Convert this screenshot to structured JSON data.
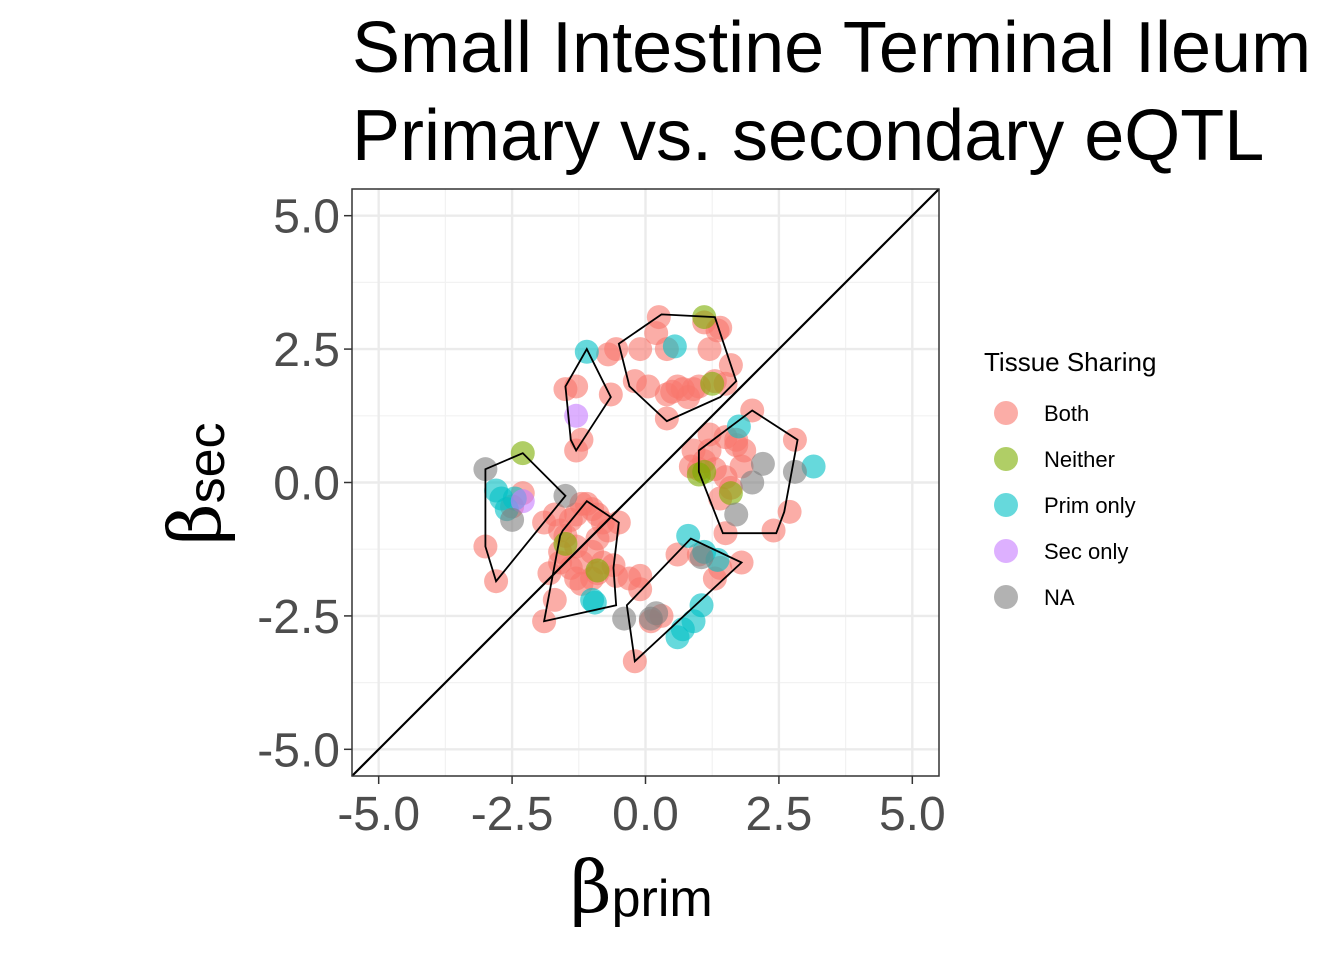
{
  "chart_data": {
    "type": "scatter",
    "title_lines": [
      "Small Intestine Terminal Ileum",
      "Primary vs. secondary eQTL"
    ],
    "xlabel": {
      "symbol": "β",
      "subscript": "prim"
    },
    "ylabel": {
      "symbol": "β",
      "subscript": "sec"
    },
    "xlim": [
      -5.5,
      5.5
    ],
    "ylim": [
      -5.5,
      5.5
    ],
    "xticks": [
      -5.0,
      -2.5,
      0.0,
      2.5,
      5.0
    ],
    "yticks": [
      -5.0,
      -2.5,
      0.0,
      2.5,
      5.0
    ],
    "tick_labels": [
      "-5.0",
      "-2.5",
      "0.0",
      "2.5",
      "5.0"
    ],
    "grid": true,
    "reference_line": "y = x",
    "legend": {
      "title": "Tissue Sharing",
      "placement": "right",
      "entries": [
        {
          "label": "Both",
          "key": "both",
          "color": "#F8766D"
        },
        {
          "label": "Neither",
          "key": "neither",
          "color": "#7CAE00"
        },
        {
          "label": "Prim only",
          "key": "prim",
          "color": "#00BFC4"
        },
        {
          "label": "Sec only",
          "key": "sec",
          "color": "#C77CFF"
        },
        {
          "label": "NA",
          "key": "na",
          "color": "#7F7F7F"
        }
      ]
    },
    "series": [
      {
        "name": "Both",
        "key": "both",
        "points": [
          [
            0.2,
            2.8
          ],
          [
            0.25,
            3.1
          ],
          [
            0.4,
            2.5
          ],
          [
            -0.1,
            2.5
          ],
          [
            -0.55,
            2.5
          ],
          [
            -0.7,
            2.4
          ],
          [
            -0.2,
            1.9
          ],
          [
            0.05,
            1.8
          ],
          [
            0.4,
            1.65
          ],
          [
            0.5,
            1.7
          ],
          [
            0.6,
            1.8
          ],
          [
            0.7,
            1.75
          ],
          [
            0.8,
            1.6
          ],
          [
            0.9,
            1.75
          ],
          [
            1.0,
            1.8
          ],
          [
            1.3,
            1.9
          ],
          [
            1.5,
            1.85
          ],
          [
            1.6,
            2.2
          ],
          [
            1.2,
            2.5
          ],
          [
            1.1,
            3.0
          ],
          [
            1.4,
            2.9
          ],
          [
            1.35,
            2.85
          ],
          [
            0.4,
            1.2
          ],
          [
            -1.5,
            1.75
          ],
          [
            -1.3,
            1.8
          ],
          [
            -0.65,
            1.65
          ],
          [
            -1.3,
            0.6
          ],
          [
            -1.2,
            0.8
          ],
          [
            1.2,
            0.9
          ],
          [
            1.5,
            0.85
          ],
          [
            1.7,
            0.7
          ],
          [
            1.85,
            0.6
          ],
          [
            2.0,
            1.35
          ],
          [
            2.8,
            0.8
          ],
          [
            1.3,
            0.25
          ],
          [
            1.5,
            0.1
          ],
          [
            1.8,
            0.3
          ],
          [
            1.6,
            -0.1
          ],
          [
            1.4,
            -0.3
          ],
          [
            2.4,
            -0.9
          ],
          [
            2.7,
            -0.55
          ],
          [
            1.5,
            -0.95
          ],
          [
            0.9,
            0.6
          ],
          [
            1.1,
            0.4
          ],
          [
            1.0,
            0.25
          ],
          [
            0.85,
            0.3
          ],
          [
            1.2,
            0.6
          ],
          [
            1.7,
            0.8
          ],
          [
            -3.0,
            -1.2
          ],
          [
            -2.8,
            -1.85
          ],
          [
            -2.5,
            -0.45
          ],
          [
            -2.3,
            -0.2
          ],
          [
            -1.9,
            -0.75
          ],
          [
            -1.7,
            -0.6
          ],
          [
            -1.6,
            -0.9
          ],
          [
            -1.5,
            -1.0
          ],
          [
            -1.4,
            -0.7
          ],
          [
            -1.3,
            -0.6
          ],
          [
            -1.2,
            -0.4
          ],
          [
            -1.1,
            -0.4
          ],
          [
            -1.0,
            -0.5
          ],
          [
            -0.9,
            -0.6
          ],
          [
            -0.8,
            -0.75
          ],
          [
            -0.7,
            -0.9
          ],
          [
            -0.5,
            -0.75
          ],
          [
            -1.3,
            -1.2
          ],
          [
            -1.2,
            -1.5
          ],
          [
            -1.0,
            -1.3
          ],
          [
            -0.9,
            -1.05
          ],
          [
            -1.6,
            -1.3
          ],
          [
            -1.4,
            -1.6
          ],
          [
            -1.3,
            -1.8
          ],
          [
            -1.2,
            -1.9
          ],
          [
            -1.0,
            -1.8
          ],
          [
            -0.9,
            -1.7
          ],
          [
            -0.8,
            -1.5
          ],
          [
            -0.6,
            -1.55
          ],
          [
            -0.55,
            -1.75
          ],
          [
            -1.8,
            -1.7
          ],
          [
            -1.7,
            -2.2
          ],
          [
            -1.9,
            -2.6
          ],
          [
            -1.6,
            -1.5
          ],
          [
            -0.3,
            -1.8
          ],
          [
            -0.1,
            -1.75
          ],
          [
            0.3,
            -2.5
          ],
          [
            0.1,
            -2.6
          ],
          [
            -0.2,
            -3.35
          ],
          [
            0.6,
            -1.35
          ],
          [
            1.0,
            -1.35
          ],
          [
            1.3,
            -1.8
          ],
          [
            1.4,
            -1.6
          ],
          [
            1.8,
            -1.5
          ],
          [
            -0.1,
            -2.0
          ]
        ]
      },
      {
        "name": "Neither",
        "key": "neither",
        "points": [
          [
            1.1,
            3.1
          ],
          [
            1.25,
            1.85
          ],
          [
            -2.3,
            0.55
          ],
          [
            1.0,
            0.15
          ],
          [
            1.1,
            0.2
          ],
          [
            1.6,
            -0.2
          ],
          [
            -1.5,
            -1.15
          ],
          [
            -0.9,
            -1.65
          ]
        ]
      },
      {
        "name": "Prim only",
        "key": "prim",
        "points": [
          [
            -1.1,
            2.45
          ],
          [
            0.55,
            2.55
          ],
          [
            1.75,
            1.05
          ],
          [
            3.15,
            0.3
          ],
          [
            -2.8,
            -0.15
          ],
          [
            -2.7,
            -0.3
          ],
          [
            -2.6,
            -0.5
          ],
          [
            -2.45,
            -0.3
          ],
          [
            0.8,
            -1.0
          ],
          [
            1.1,
            -1.3
          ],
          [
            1.35,
            -1.45
          ],
          [
            1.05,
            -2.3
          ],
          [
            0.9,
            -2.6
          ],
          [
            0.7,
            -2.75
          ],
          [
            0.6,
            -2.9
          ],
          [
            -1.0,
            -2.2
          ],
          [
            -0.95,
            -2.25
          ]
        ]
      },
      {
        "name": "Sec only",
        "key": "sec",
        "points": [
          [
            -1.3,
            1.25
          ],
          [
            -2.3,
            -0.35
          ]
        ]
      },
      {
        "name": "NA",
        "key": "na",
        "points": [
          [
            -3.0,
            0.25
          ],
          [
            -2.5,
            -0.7
          ],
          [
            -1.5,
            -0.25
          ],
          [
            2.2,
            0.35
          ],
          [
            2.8,
            0.2
          ],
          [
            2.0,
            0.0
          ],
          [
            1.7,
            -0.6
          ],
          [
            0.2,
            -2.45
          ],
          [
            0.1,
            -2.55
          ],
          [
            -0.4,
            -2.55
          ],
          [
            1.05,
            -1.4
          ]
        ]
      }
    ],
    "hulls": [
      {
        "key": "both-top",
        "points": [
          [
            -0.5,
            2.6
          ],
          [
            0.3,
            3.15
          ],
          [
            1.3,
            3.1
          ],
          [
            1.6,
            2.2
          ],
          [
            1.7,
            1.9
          ],
          [
            1.4,
            1.6
          ],
          [
            0.4,
            1.15
          ],
          [
            -0.3,
            1.8
          ]
        ]
      },
      {
        "name": "both-left-upper",
        "points": [
          [
            -1.5,
            1.8
          ],
          [
            -1.1,
            2.5
          ],
          [
            -0.65,
            1.6
          ],
          [
            -1.3,
            0.6
          ],
          [
            -1.4,
            0.8
          ]
        ]
      },
      {
        "name": "both-right",
        "points": [
          [
            1.0,
            0.6
          ],
          [
            2.0,
            1.35
          ],
          [
            2.85,
            0.8
          ],
          [
            2.6,
            -0.55
          ],
          [
            2.45,
            -0.95
          ],
          [
            1.45,
            -0.95
          ],
          [
            1.0,
            0.2
          ]
        ]
      },
      {
        "name": "both-far-left",
        "points": [
          [
            -2.3,
            0.55
          ],
          [
            -3.0,
            0.25
          ],
          [
            -3.0,
            -1.2
          ],
          [
            -2.8,
            -1.85
          ],
          [
            -1.5,
            -0.25
          ]
        ]
      },
      {
        "name": "both-center",
        "points": [
          [
            -1.1,
            -0.35
          ],
          [
            -0.5,
            -0.75
          ],
          [
            -0.6,
            -1.6
          ],
          [
            -0.55,
            -2.3
          ],
          [
            -1.9,
            -2.6
          ],
          [
            -1.6,
            -1.0
          ],
          [
            -1.55,
            -0.9
          ]
        ]
      },
      {
        "name": "both-bottom",
        "points": [
          [
            -0.35,
            -2.3
          ],
          [
            0.85,
            -1.05
          ],
          [
            1.8,
            -1.5
          ],
          [
            -0.2,
            -3.35
          ]
        ]
      }
    ]
  }
}
